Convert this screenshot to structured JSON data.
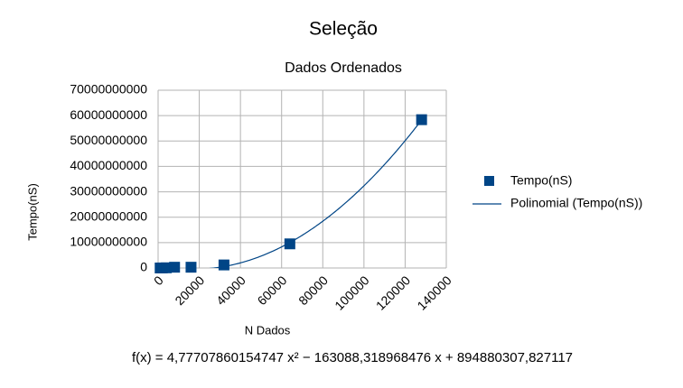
{
  "chart_data": {
    "type": "scatter",
    "title": "Seleção",
    "subtitle": "Dados Ordenados",
    "x_label": "N Dados",
    "y_label": "Tempo(nS)",
    "series": [
      {
        "name": "Tempo(nS)",
        "color": "#004586",
        "x": [
          1000,
          2000,
          4000,
          8000,
          16000,
          32000,
          64000,
          128000
        ],
        "values": [
          5000000,
          20000000,
          70000000,
          300000000,
          300000000,
          1200000000,
          9500000000,
          58400000000
        ]
      }
    ],
    "trendline": {
      "name": "Polinomial (Tempo(nS))",
      "color": "#004586",
      "coefficients": [
        4.77707860154747,
        -163088.318968476,
        894880307.827117
      ],
      "equation": "f(x) = 4,77707860154747 x² − 163088,318968476 x + 894880307,827117"
    },
    "xlim": [
      0,
      140000
    ],
    "xticks": [
      0,
      20000,
      40000,
      60000,
      80000,
      100000,
      120000,
      140000
    ],
    "ylim": [
      0,
      70000000000
    ],
    "yticks": [
      0,
      10000000000,
      20000000000,
      30000000000,
      40000000000,
      50000000000,
      60000000000,
      70000000000
    ],
    "grid": true,
    "legend": "right"
  }
}
